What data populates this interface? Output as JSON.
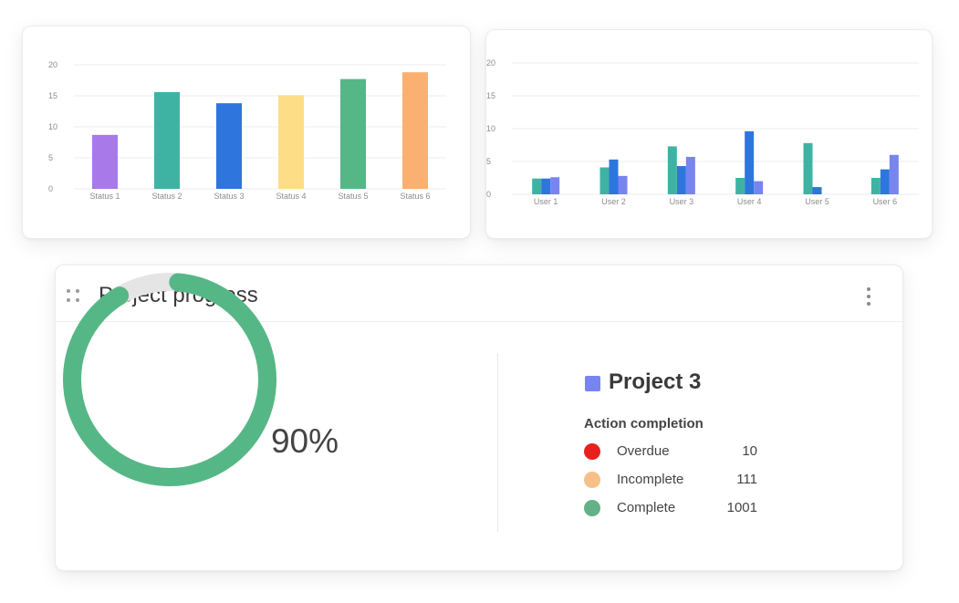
{
  "chart_data": [
    {
      "type": "bar",
      "categories": [
        "Status 1",
        "Status 2",
        "Status 3",
        "Status 4",
        "Status 5",
        "Status 6"
      ],
      "values": [
        8.7,
        15.6,
        13.8,
        15.1,
        17.7,
        18.8
      ],
      "colors": [
        "#a779e9",
        "#3fb3a3",
        "#2e75de",
        "#fedd87",
        "#56b786",
        "#f9b071"
      ],
      "yticks": [
        0,
        5,
        10,
        15,
        20
      ],
      "ylim": [
        0,
        20
      ]
    },
    {
      "type": "bar",
      "categories": [
        "User 1",
        "User 2",
        "User 3",
        "User 4",
        "User 5",
        "User 6"
      ],
      "series": [
        {
          "values": [
            2.4,
            4.1,
            7.3,
            2.5,
            7.8,
            2.5
          ],
          "color": "#3fb3a3"
        },
        {
          "values": [
            2.4,
            5.3,
            4.3,
            9.6,
            1.1,
            3.8
          ],
          "color": "#2e75de"
        },
        {
          "values": [
            2.6,
            2.8,
            5.7,
            2.0,
            0,
            6.0
          ],
          "color": "#7884f0"
        }
      ],
      "yticks": [
        0,
        5,
        10,
        15,
        20
      ],
      "ylim": [
        0,
        20
      ]
    }
  ],
  "widget": {
    "title": "Project progress",
    "drag_icon": "drag-handle-icon",
    "menu_icon": "more-vertical-icon",
    "percent": 0.9,
    "percent_label": "90%",
    "ring_color": "#56b786",
    "ring_track_color": "#e5e5e5",
    "project": {
      "name": "Project 3",
      "color": "#7884f0"
    },
    "section_label": "Action completion",
    "legend": [
      {
        "label": "Overdue",
        "count": "10",
        "color": "#e8211e"
      },
      {
        "label": "Incomplete",
        "count": "111",
        "color": "#f7c089"
      },
      {
        "label": "Complete",
        "count": "1001",
        "color": "#63b187"
      }
    ]
  }
}
